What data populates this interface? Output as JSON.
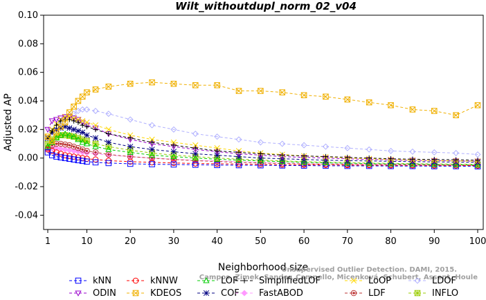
{
  "chart_data": {
    "type": "line",
    "title": "Wilt_withoutdupl_norm_02_v04",
    "xlabel": "Neighborhood size",
    "ylabel": "Adjusted AP",
    "xlim": [
      0,
      101
    ],
    "ylim": [
      -0.05,
      0.1
    ],
    "x_ticks": [
      "1",
      "10",
      "20",
      "30",
      "40",
      "50",
      "60",
      "70",
      "80",
      "90",
      "100"
    ],
    "y_ticks": [
      "-0.04",
      "-0.02",
      "0.00",
      "0.02",
      "0.04",
      "0.06",
      "0.08",
      "0.10"
    ],
    "x": [
      1,
      2,
      3,
      4,
      5,
      6,
      7,
      8,
      9,
      10,
      12,
      15,
      20,
      25,
      30,
      35,
      40,
      45,
      50,
      55,
      60,
      65,
      70,
      75,
      80,
      85,
      90,
      95,
      100
    ],
    "series": [
      {
        "name": "kNN",
        "color": "#0000ff",
        "marker": "square",
        "values": [
          0.004,
          0.002,
          0.001,
          0.0005,
          0.0,
          -0.0005,
          -0.001,
          -0.0015,
          -0.002,
          -0.0025,
          -0.003,
          -0.0035,
          -0.004,
          -0.0043,
          -0.0045,
          -0.0047,
          -0.0049,
          -0.005,
          -0.0051,
          -0.0052,
          -0.0053,
          -0.0054,
          -0.0055,
          -0.0055,
          -0.0056,
          -0.0056,
          -0.0057,
          -0.0057,
          -0.0058
        ]
      },
      {
        "name": "kNNW",
        "color": "#ff0000",
        "marker": "circle",
        "values": [
          0.006,
          0.005,
          0.004,
          0.003,
          0.002,
          0.0015,
          0.001,
          0.0005,
          0.0,
          -0.0005,
          -0.001,
          -0.0018,
          -0.0025,
          -0.003,
          -0.0034,
          -0.0038,
          -0.004,
          -0.0042,
          -0.0044,
          -0.0046,
          -0.0047,
          -0.0048,
          -0.0049,
          -0.005,
          -0.0051,
          -0.0051,
          -0.0052,
          -0.0052,
          -0.0053
        ]
      },
      {
        "name": "LOF",
        "color": "#00cc00",
        "marker": "triangle-up",
        "values": [
          0.008,
          0.011,
          0.014,
          0.016,
          0.017,
          0.016,
          0.015,
          0.013,
          0.011,
          0.01,
          0.008,
          0.006,
          0.004,
          0.002,
          0.001,
          0.0,
          -0.0008,
          -0.0015,
          -0.002,
          -0.0025,
          -0.003,
          -0.0033,
          -0.0036,
          -0.0039,
          -0.0041,
          -0.0043,
          -0.0045,
          -0.0046,
          -0.0048
        ]
      },
      {
        "name": "SimplifiedLOF",
        "color": "#000000",
        "marker": "plus",
        "values": [
          0.014,
          0.019,
          0.023,
          0.026,
          0.027,
          0.027,
          0.026,
          0.025,
          0.023,
          0.022,
          0.02,
          0.017,
          0.014,
          0.011,
          0.009,
          0.007,
          0.005,
          0.004,
          0.003,
          0.002,
          0.0015,
          0.001,
          0.0005,
          0.0,
          -0.0005,
          -0.0008,
          -0.001,
          -0.0012,
          -0.0015
        ]
      },
      {
        "name": "LoOP",
        "color": "#ffd700",
        "marker": "cross",
        "values": [
          0.015,
          0.02,
          0.024,
          0.027,
          0.029,
          0.029,
          0.028,
          0.027,
          0.026,
          0.025,
          0.023,
          0.02,
          0.016,
          0.013,
          0.011,
          0.009,
          0.007,
          0.005,
          0.0035,
          0.0025,
          0.0015,
          0.0008,
          0.0,
          -0.0005,
          -0.001,
          -0.0015,
          -0.0018,
          -0.002,
          -0.0022
        ]
      },
      {
        "name": "LDOF",
        "color": "#b0b0ff",
        "marker": "diamond",
        "values": [
          0.012,
          0.018,
          0.022,
          0.025,
          0.028,
          0.03,
          0.031,
          0.033,
          0.034,
          0.034,
          0.033,
          0.031,
          0.027,
          0.023,
          0.02,
          0.017,
          0.015,
          0.013,
          0.011,
          0.01,
          0.009,
          0.008,
          0.007,
          0.006,
          0.005,
          0.0045,
          0.004,
          0.0035,
          0.0025
        ]
      },
      {
        "name": "ODIN",
        "color": "#9900cc",
        "marker": "triangle-down",
        "values": [
          0.02,
          0.026,
          0.027,
          0.028,
          0.029,
          0.029,
          0.028,
          0.027,
          0.025,
          0.023,
          0.021,
          0.017,
          0.013,
          0.01,
          0.008,
          0.006,
          0.0045,
          0.003,
          0.002,
          0.001,
          0.0005,
          0.0,
          -0.0005,
          -0.001,
          -0.0013,
          -0.0016,
          -0.0018,
          -0.002,
          -0.0022
        ]
      },
      {
        "name": "KDEOS",
        "color": "#f0b000",
        "marker": "square-x",
        "values": [
          0.015,
          0.012,
          0.018,
          0.022,
          0.025,
          0.032,
          0.036,
          0.04,
          0.043,
          0.046,
          0.048,
          0.05,
          0.052,
          0.053,
          0.052,
          0.051,
          0.051,
          0.047,
          0.047,
          0.046,
          0.044,
          0.043,
          0.041,
          0.039,
          0.037,
          0.034,
          0.033,
          0.03,
          0.037
        ]
      },
      {
        "name": "COF",
        "color": "#000080",
        "marker": "asterisk",
        "values": [
          0.014,
          0.018,
          0.02,
          0.021,
          0.022,
          0.021,
          0.02,
          0.019,
          0.018,
          0.016,
          0.014,
          0.011,
          0.008,
          0.006,
          0.0045,
          0.003,
          0.002,
          0.001,
          0.0,
          -0.0005,
          -0.001,
          -0.0015,
          -0.0018,
          -0.002,
          -0.0023,
          -0.0025,
          -0.0027,
          -0.0028,
          -0.003
        ]
      },
      {
        "name": "FastABOD",
        "color": "#ff99ff",
        "marker": "diamond-filled",
        "values": [
          0.006,
          0.007,
          0.007,
          0.0065,
          0.006,
          0.0055,
          0.005,
          0.0045,
          0.004,
          0.0035,
          0.003,
          0.002,
          0.001,
          0.0,
          -0.0008,
          -0.0015,
          -0.002,
          -0.0025,
          -0.003,
          -0.0033,
          -0.0036,
          -0.0038,
          -0.004,
          -0.0042,
          -0.0043,
          -0.0044,
          -0.0045,
          -0.0046,
          -0.0047
        ]
      },
      {
        "name": "LDF",
        "color": "#bb3333",
        "marker": "circle-filled",
        "values": [
          0.007,
          0.009,
          0.01,
          0.01,
          0.0095,
          0.009,
          0.008,
          0.007,
          0.006,
          0.005,
          0.004,
          0.0025,
          0.001,
          0.0,
          -0.001,
          -0.0018,
          -0.0024,
          -0.003,
          -0.0034,
          -0.0038,
          -0.0041,
          -0.0043,
          -0.0045,
          -0.0047,
          -0.0048,
          -0.0049,
          -0.005,
          -0.0051,
          -0.0052
        ]
      },
      {
        "name": "INFLO",
        "color": "#99cc00",
        "marker": "square-star",
        "values": [
          0.01,
          0.013,
          0.015,
          0.016,
          0.016,
          0.0155,
          0.015,
          0.014,
          0.013,
          0.012,
          0.01,
          0.008,
          0.0055,
          0.0035,
          0.002,
          0.001,
          0.0,
          -0.0008,
          -0.0014,
          -0.002,
          -0.0025,
          -0.0029,
          -0.0032,
          -0.0035,
          -0.0037,
          -0.0039,
          -0.0041,
          -0.0042,
          -0.0044
        ]
      }
    ],
    "legend_position": "bottom",
    "grid": false,
    "watermark_lines": [
      "Unsupervised Outlier Detection. DAMI, 2015.",
      "Campos, Zimek, Sander, Campello, Micenková, Schubert, Assent, Houle"
    ]
  }
}
